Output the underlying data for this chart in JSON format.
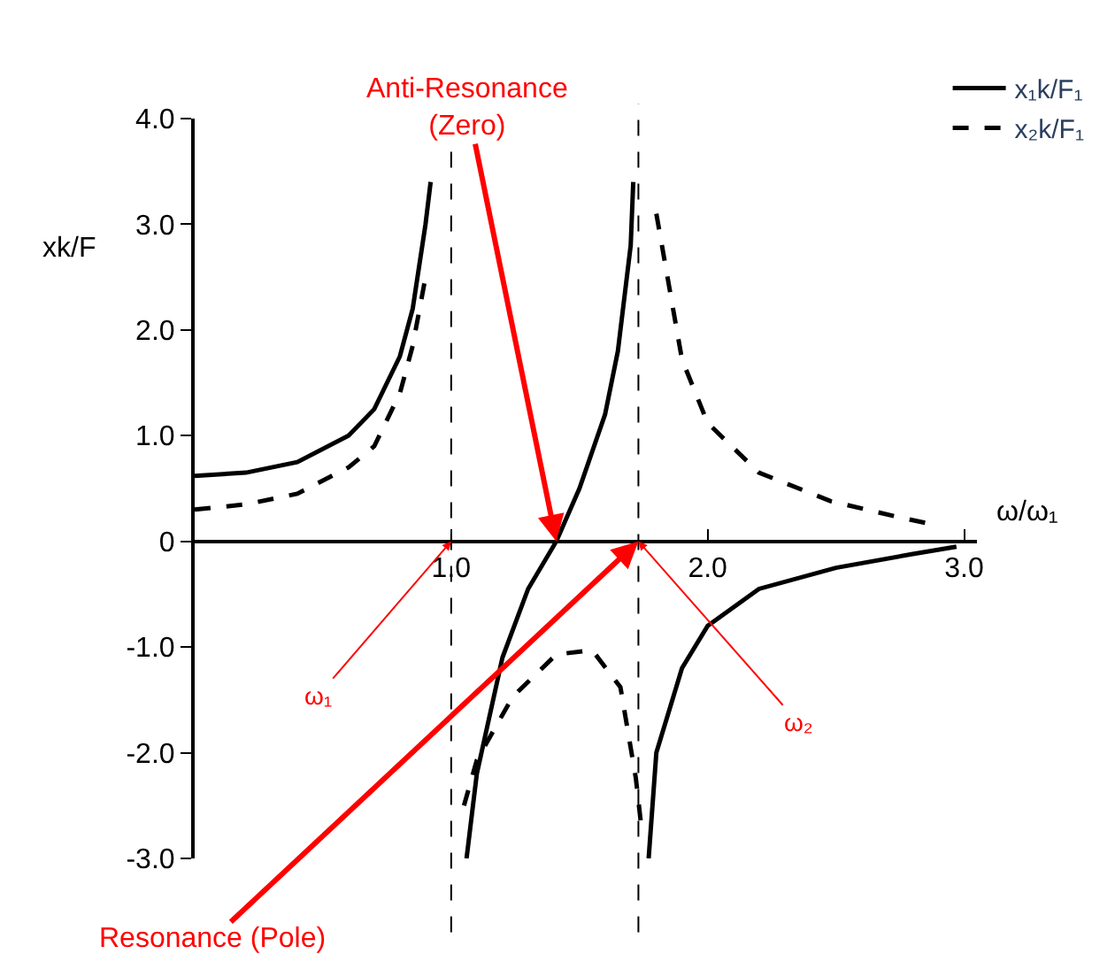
{
  "chart_data": {
    "type": "line",
    "xlabel": "ω/ω₁",
    "ylabel": "xk/F",
    "xlim": [
      0,
      3.05
    ],
    "ylim": [
      -3.0,
      4.0
    ],
    "xticks": [
      {
        "value": 1.0,
        "label": "1.0"
      },
      {
        "value": 2.0,
        "label": "2.0"
      },
      {
        "value": 3.0,
        "label": "3.0"
      }
    ],
    "yticks": [
      {
        "value": -3.0,
        "label": "-3.0"
      },
      {
        "value": -2.0,
        "label": "-2.0"
      },
      {
        "value": -1.0,
        "label": "-1.0"
      },
      0,
      {
        "value": 1.0,
        "label": "1.0"
      },
      {
        "value": 2.0,
        "label": "2.0"
      },
      {
        "value": 3.0,
        "label": "3.0"
      },
      {
        "value": 4.0,
        "label": "4.0"
      }
    ],
    "legend": "top right",
    "marker": "none",
    "series": [
      {
        "name": "x₁k/F₁",
        "color": "#000000",
        "line_style": "solid",
        "x": [
          0,
          0.2,
          0.4,
          0.6,
          0.7,
          0.8,
          0.85,
          0.9,
          0.92,
          0.96,
          1.06,
          1.1,
          1.2,
          1.3,
          1.41,
          1.5,
          1.6,
          1.65,
          1.7,
          1.71,
          1.74,
          1.77,
          1.8,
          1.9,
          2.0,
          2.2,
          2.5,
          2.8,
          2.97
        ],
        "values": [
          0.62,
          0.65,
          0.75,
          1.0,
          1.25,
          1.75,
          2.2,
          3.0,
          3.4,
          null,
          -3.0,
          -2.2,
          -1.1,
          -0.45,
          0,
          0.5,
          1.2,
          1.8,
          2.8,
          3.4,
          null,
          -3.0,
          -2.0,
          -1.2,
          -0.8,
          -0.45,
          -0.25,
          -0.12,
          -0.05
        ]
      },
      {
        "name": "x₂k/F₁",
        "color": "#000000",
        "line_style": "dashed",
        "x": [
          0,
          0.2,
          0.4,
          0.6,
          0.7,
          0.8,
          0.85,
          0.9,
          0.96,
          1.05,
          1.1,
          1.24,
          1.41,
          1.55,
          1.66,
          1.72,
          1.74,
          1.77,
          1.8,
          1.9,
          2.0,
          2.2,
          2.48,
          2.76,
          2.86
        ],
        "values": [
          0.3,
          0.35,
          0.45,
          0.7,
          0.9,
          1.4,
          1.85,
          2.5,
          null,
          -2.5,
          -2.07,
          -1.47,
          -1.07,
          -1.03,
          -1.38,
          -2.24,
          -2.67,
          null,
          3.1,
          1.72,
          1.12,
          0.65,
          0.38,
          0.22,
          0.17
        ]
      }
    ],
    "ref_lines": [
      {
        "axis": "x",
        "value": 1.0,
        "color": "#000000",
        "line_style": "dashed"
      },
      {
        "axis": "x",
        "value": 1.73,
        "color": "#000000",
        "line_style": "dashed"
      }
    ],
    "annotations": [
      {
        "text": "Anti-Resonance\n(Zero)",
        "x": 1.41,
        "y": 0
      },
      {
        "text": "ω₁",
        "x": 1.0,
        "y": 0
      },
      {
        "text": "ω₂",
        "x": 1.73,
        "y": 0
      },
      {
        "text": "Resonance (Pole)",
        "x": 1.73,
        "y": 0
      }
    ]
  }
}
